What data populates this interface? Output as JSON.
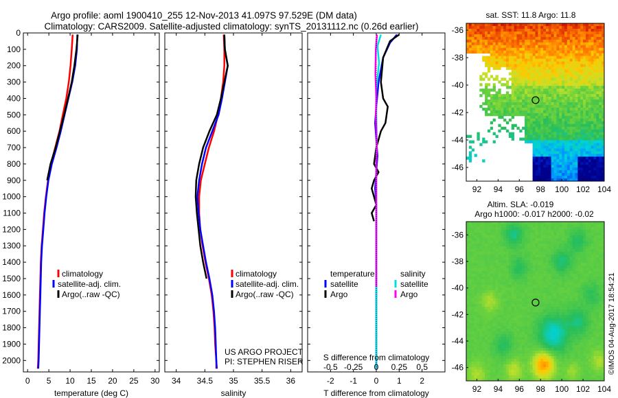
{
  "header": {
    "line1": "Argo profile: aoml 1900410_255 12-Nov-2013 41.097S 97.529E (DM data)",
    "line2": "Climatology: CARS2009. Satellite-adjusted climatology: synTS_20131112.nc (0.26d earlier)"
  },
  "map_labels": {
    "sst": "sat. SST: 11.8 Argo: 11.8",
    "sla": "Altim. SLA: -0.019",
    "h": "Argo h1000: -0.017 h2000: -0.02"
  },
  "credit": {
    "project": "US ARGO PROJECT",
    "pi": "PI: STEPHEN RISER",
    "stamp": "©IMOS 04-Aug-2017 18:54:21"
  },
  "colors": {
    "climatology": "#ff0000",
    "satellite": "#0000ff",
    "argo": "#000000",
    "sat_salinity": "#00e0e0",
    "argo_salinity": "#ff00ff",
    "float_marker": "#000000"
  },
  "chart_data": [
    {
      "type": "line",
      "xlabel": "temperature (deg C)",
      "xlim": [
        -1,
        31
      ],
      "xticks": [
        0,
        5,
        10,
        15,
        20,
        25,
        30
      ],
      "ylim": [
        2070,
        0
      ],
      "yticks": [
        0,
        100,
        200,
        300,
        400,
        500,
        600,
        700,
        800,
        900,
        1000,
        1100,
        1200,
        1300,
        1400,
        1500,
        1600,
        1700,
        1800,
        1900,
        2000
      ],
      "legend": [
        "climatology",
        "satellite-adj. clim.",
        "Argo(..raw -QC)"
      ],
      "series": [
        {
          "name": "climatology",
          "color_key": "climatology",
          "x": [
            10.6,
            10.4,
            10.1,
            9.7,
            9.1,
            8.3,
            7.5,
            6.5,
            5.5,
            4.8,
            4.3,
            3.9,
            3.6,
            3.3,
            3.1,
            3.0,
            2.9,
            2.8,
            2.7,
            2.6,
            2.5,
            2.4
          ],
          "y": [
            10,
            100,
            200,
            300,
            400,
            500,
            600,
            700,
            800,
            900,
            1000,
            1100,
            1200,
            1300,
            1400,
            1500,
            1600,
            1700,
            1800,
            1900,
            2000,
            2050
          ]
        },
        {
          "name": "satellite-adj. clim.",
          "color_key": "satellite",
          "x": [
            11.7,
            11.6,
            11.2,
            10.5,
            9.6,
            8.7,
            7.8,
            6.8,
            5.7,
            4.9,
            4.4,
            4.0,
            3.7,
            3.4,
            3.2,
            3.1,
            3.0,
            2.9,
            2.8,
            2.7,
            2.6,
            2.5
          ],
          "y": [
            10,
            100,
            200,
            300,
            400,
            500,
            600,
            700,
            800,
            900,
            1000,
            1100,
            1200,
            1300,
            1400,
            1500,
            1600,
            1700,
            1800,
            1900,
            2000,
            2050
          ]
        },
        {
          "name": "Argo(..raw -QC)",
          "color_key": "argo",
          "x": [
            11.8,
            11.5,
            11.0,
            10.4,
            9.5,
            8.6,
            7.6,
            6.6,
            5.4,
            4.6
          ],
          "y": [
            10,
            100,
            200,
            300,
            400,
            500,
            600,
            700,
            800,
            900
          ]
        }
      ]
    },
    {
      "type": "line",
      "xlabel": "salinity",
      "xlim": [
        33.8,
        36.2
      ],
      "xticks": [
        34,
        34.5,
        35,
        35.5,
        36
      ],
      "xtick_labels": [
        "34",
        "34.5",
        "35",
        "35.5",
        "36"
      ],
      "ylim": [
        2070,
        0
      ],
      "legend": [
        "climatology",
        "satellite-adj. clim.",
        "Argo(..raw -QC)"
      ],
      "series": [
        {
          "name": "climatology",
          "color_key": "climatology",
          "x": [
            34.83,
            34.84,
            34.84,
            34.82,
            34.78,
            34.73,
            34.66,
            34.57,
            34.5,
            34.43,
            34.4,
            34.4,
            34.42,
            34.46,
            34.51,
            34.57,
            34.62,
            34.65,
            34.67,
            34.68,
            34.7,
            34.7
          ],
          "y": [
            10,
            100,
            200,
            300,
            400,
            500,
            600,
            700,
            800,
            900,
            1000,
            1100,
            1200,
            1300,
            1400,
            1500,
            1600,
            1700,
            1800,
            1900,
            2000,
            2050
          ]
        },
        {
          "name": "satellite-adj. clim.",
          "color_key": "satellite",
          "x": [
            34.84,
            34.85,
            34.9,
            34.85,
            34.8,
            34.74,
            34.63,
            34.52,
            34.45,
            34.4,
            34.37,
            34.39,
            34.42,
            34.47,
            34.52,
            34.58,
            34.63,
            34.66,
            34.68,
            34.69,
            34.7,
            34.71
          ],
          "y": [
            10,
            100,
            200,
            300,
            400,
            500,
            600,
            700,
            800,
            900,
            1000,
            1100,
            1200,
            1300,
            1400,
            1500,
            1600,
            1700,
            1800,
            1900,
            2000,
            2050
          ]
        },
        {
          "name": "Argo(..raw -QC)",
          "color_key": "argo",
          "x": [
            34.84,
            34.85,
            34.9,
            34.84,
            34.78,
            34.71,
            34.58,
            34.47,
            34.4,
            34.35,
            34.34,
            34.36,
            34.39,
            34.42,
            34.47,
            34.53
          ],
          "y": [
            10,
            100,
            200,
            300,
            400,
            500,
            600,
            700,
            800,
            900,
            1000,
            1100,
            1200,
            1300,
            1400,
            1500
          ]
        }
      ]
    },
    {
      "type": "line",
      "xlabel": "T difference from climatology",
      "top_xlabel": "S difference from climatology",
      "xlim": [
        -3,
        3
      ],
      "xticks": [
        -2,
        -1,
        0,
        1,
        2
      ],
      "top_xticks": [
        -0.5,
        -0.25,
        0,
        0.25,
        0.5
      ],
      "top_xtick_labels": [
        "-0.5",
        "-0.25",
        "0",
        "0.25",
        "0.5"
      ],
      "ylim": [
        2070,
        0
      ],
      "legend": {
        "temperature_title": "temperature",
        "salinity_title": "salinity",
        "temperature": [
          "satellite",
          "Argo"
        ],
        "salinity": [
          "satellite",
          "Argo"
        ]
      },
      "series": [
        {
          "name": "temperature satellite",
          "color_key": "satellite",
          "x": [
            0.9,
            0.6,
            0.3,
            0.1,
            0.0,
            -0.05,
            0.0,
            0.05,
            0.0,
            -0.05,
            0.0,
            0.0,
            0.0,
            0.0,
            0.0,
            0.0,
            0.0,
            0.0,
            0.0,
            0.0
          ],
          "y": [
            10,
            60,
            150,
            300,
            450,
            550,
            650,
            750,
            850,
            950,
            1050,
            1150,
            1250,
            1400,
            1550,
            1700,
            1800,
            1900,
            2000,
            2050
          ]
        },
        {
          "name": "temperature Argo",
          "color_key": "argo",
          "x": [
            1.0,
            0.6,
            0.3,
            0.2,
            0.3,
            0.5,
            0.4,
            0.2,
            0.0,
            -0.1,
            0.1,
            -0.1,
            -0.2,
            -0.1,
            0.0,
            -0.2,
            -0.1
          ],
          "y": [
            10,
            50,
            150,
            300,
            400,
            450,
            550,
            600,
            700,
            800,
            850,
            900,
            950,
            1000,
            1050,
            1100,
            1150
          ]
        },
        {
          "name": "salinity satellite",
          "color_key": "sat_salinity",
          "x": [
            0.2,
            0.05,
            0.12,
            0.0,
            0.0,
            0.02,
            0.0,
            0.0,
            0.0,
            0.0,
            0.0,
            0.0,
            0.0,
            0.0,
            0.0,
            0.0,
            0.0
          ],
          "y": [
            10,
            80,
            180,
            350,
            500,
            650,
            800,
            950,
            1100,
            1250,
            1400,
            1550,
            1700,
            1800,
            1900,
            2000,
            2050
          ]
        },
        {
          "name": "salinity Argo",
          "color_key": "argo_salinity",
          "x": [
            0.03,
            -0.02,
            -0.04,
            0.0,
            -0.02,
            0.0,
            0.02,
            0.0,
            0.0,
            0.0,
            0.0,
            0.0,
            0.0,
            0.0,
            0.0,
            0.0
          ],
          "y": [
            10,
            100,
            250,
            400,
            500,
            600,
            700,
            800,
            900,
            1000,
            1100,
            1200,
            1300,
            1400,
            1500,
            1550
          ]
        }
      ]
    },
    {
      "type": "heatmap",
      "title": "sat. SST: 11.8 Argo: 11.8",
      "xlim": [
        91,
        104
      ],
      "xticks": [
        92,
        94,
        96,
        98,
        100,
        102,
        104
      ],
      "ylim": [
        -47,
        -35.5
      ],
      "yticks": [
        -36,
        -38,
        -40,
        -42,
        -44,
        -46
      ],
      "float_position": [
        97.529,
        -41.097
      ]
    },
    {
      "type": "heatmap",
      "title": "Altim. SLA: -0.019",
      "xlim": [
        91,
        104
      ],
      "xticks": [
        92,
        94,
        96,
        98,
        100,
        102,
        104
      ],
      "ylim": [
        -47,
        -35
      ],
      "yticks": [
        -36,
        -38,
        -40,
        -42,
        -44,
        -46
      ],
      "float_position": [
        97.529,
        -41.097
      ]
    }
  ]
}
